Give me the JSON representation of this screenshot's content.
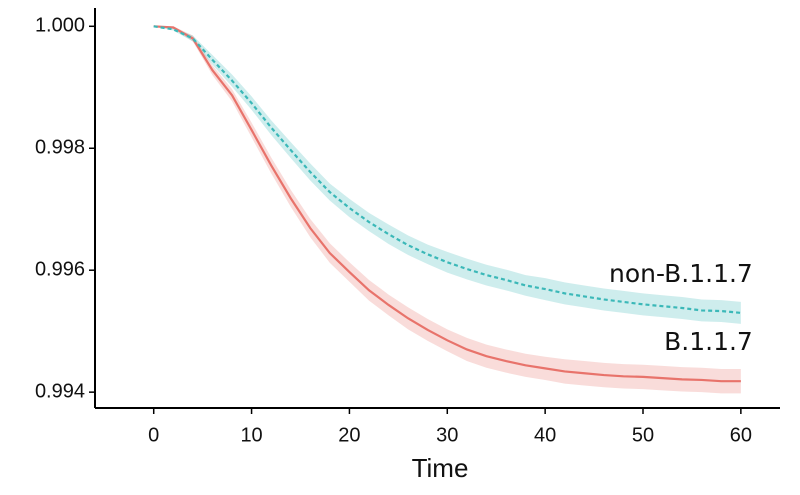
{
  "chart_data": {
    "type": "line",
    "x_label": "Time",
    "x": [
      0,
      2,
      4,
      6,
      8,
      10,
      12,
      14,
      16,
      18,
      20,
      22,
      24,
      26,
      28,
      30,
      32,
      34,
      36,
      38,
      40,
      42,
      44,
      46,
      48,
      50,
      52,
      54,
      56,
      58,
      60
    ],
    "series": [
      {
        "name": "B.1.1.7",
        "color": "#e8736b",
        "dash": false,
        "values": [
          1.0,
          0.99998,
          0.9998,
          0.99928,
          0.99887,
          0.9983,
          0.99772,
          0.99718,
          0.99669,
          0.99628,
          0.99597,
          0.99567,
          0.99543,
          0.99521,
          0.99502,
          0.99485,
          0.9947,
          0.99459,
          0.99451,
          0.99444,
          0.99439,
          0.99434,
          0.99431,
          0.99428,
          0.99426,
          0.99425,
          0.99423,
          0.99421,
          0.9942,
          0.99418,
          0.99418
        ],
        "errors": [
          0,
          2e-05,
          5e-05,
          8e-05,
          0.0001,
          0.00012,
          0.00013,
          0.00014,
          0.00015,
          0.00016,
          0.00016,
          0.00017,
          0.00017,
          0.00018,
          0.00018,
          0.00018,
          0.00019,
          0.00019,
          0.00019,
          0.00019,
          0.00019,
          0.0002,
          0.0002,
          0.0002,
          0.0002,
          0.0002,
          0.0002,
          0.0002,
          0.0002,
          0.0002,
          0.0002
        ]
      },
      {
        "name": "non-B.1.1.7",
        "color": "#3bb8b8",
        "dash": true,
        "values": [
          1.0,
          0.99995,
          0.9998,
          0.99945,
          0.99911,
          0.99874,
          0.99834,
          0.99797,
          0.99761,
          0.99728,
          0.99702,
          0.99679,
          0.99659,
          0.99641,
          0.99626,
          0.99613,
          0.99602,
          0.99592,
          0.99584,
          0.99575,
          0.99569,
          0.99562,
          0.99557,
          0.99552,
          0.99548,
          0.99544,
          0.99541,
          0.99538,
          0.99534,
          0.99533,
          0.9953
        ],
        "errors": [
          0,
          2e-05,
          5e-05,
          8e-05,
          0.0001,
          0.00011,
          0.00012,
          0.00013,
          0.00014,
          0.00014,
          0.00015,
          0.00015,
          0.00016,
          0.00016,
          0.00016,
          0.00017,
          0.00017,
          0.00017,
          0.00017,
          0.00017,
          0.00018,
          0.00018,
          0.00018,
          0.00018,
          0.00018,
          0.00018,
          0.00018,
          0.00018,
          0.00018,
          0.00018,
          0.00018
        ]
      }
    ],
    "xlim": [
      -6,
      64
    ],
    "xticks": [
      0,
      10,
      20,
      30,
      40,
      50,
      60
    ],
    "ylim": [
      0.99374,
      1.0003
    ],
    "yticks": [
      {
        "value": 1,
        "label": "1.000"
      },
      0.998,
      0.996,
      0.994
    ],
    "grid": false
  }
}
